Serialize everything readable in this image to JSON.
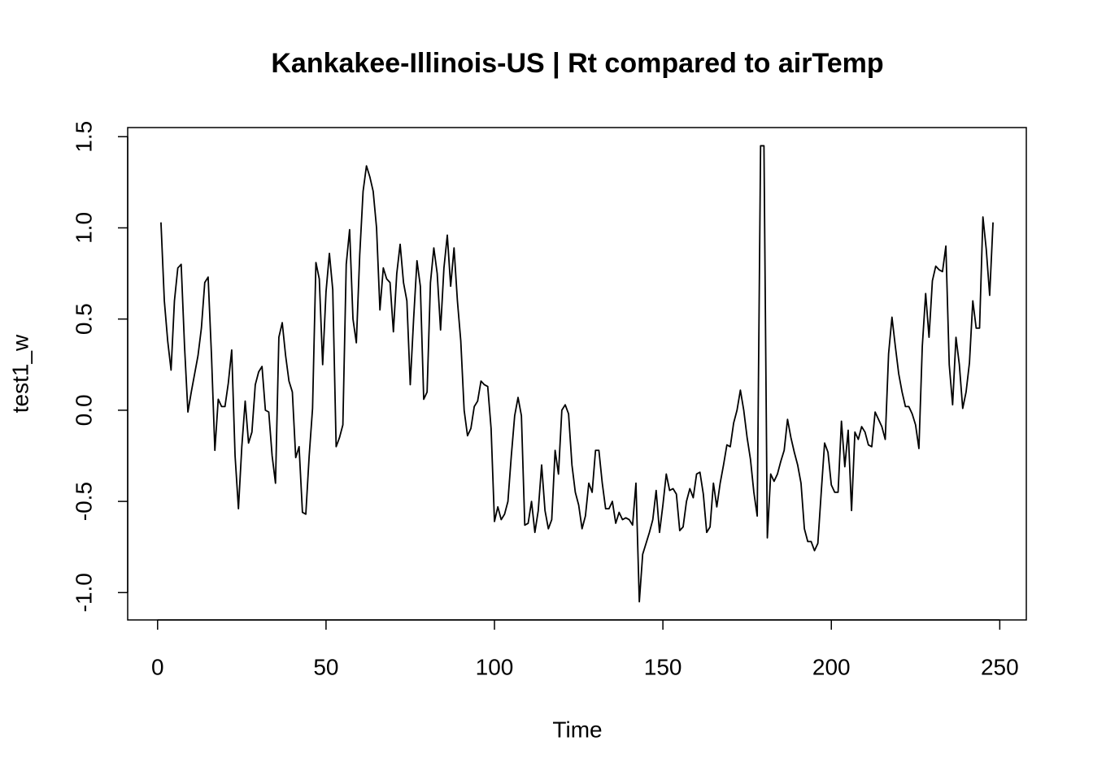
{
  "chart_data": {
    "type": "line",
    "title": "Kankakee-Illinois-US | Rt compared to airTemp",
    "xlabel": "Time",
    "ylabel": "test1_w",
    "color": "#000000",
    "xlim": [
      -8.88,
      257.88
    ],
    "ylim": [
      -1.15,
      1.55
    ],
    "xticks": [
      0,
      50,
      100,
      150,
      200,
      250
    ],
    "yticks": [
      {
        "value": -1,
        "label": "-1.0"
      },
      -0.5,
      {
        "value": 0,
        "label": "0.0"
      },
      0.5,
      {
        "value": 1,
        "label": "1.0"
      },
      1.5
    ],
    "grid": false,
    "x": [
      1,
      2,
      3,
      4,
      5,
      6,
      7,
      8,
      9,
      10,
      11,
      12,
      13,
      14,
      15,
      16,
      17,
      18,
      19,
      20,
      21,
      22,
      23,
      24,
      25,
      26,
      27,
      28,
      29,
      30,
      31,
      32,
      33,
      34,
      35,
      36,
      37,
      38,
      39,
      40,
      41,
      42,
      43,
      44,
      45,
      46,
      47,
      48,
      49,
      50,
      51,
      52,
      53,
      54,
      55,
      56,
      57,
      58,
      59,
      60,
      61,
      62,
      63,
      64,
      65,
      66,
      67,
      68,
      69,
      70,
      71,
      72,
      73,
      74,
      75,
      76,
      77,
      78,
      79,
      80,
      81,
      82,
      83,
      84,
      85,
      86,
      87,
      88,
      89,
      90,
      91,
      92,
      93,
      94,
      95,
      96,
      97,
      98,
      99,
      100,
      101,
      102,
      103,
      104,
      105,
      106,
      107,
      108,
      109,
      110,
      111,
      112,
      113,
      114,
      115,
      116,
      117,
      118,
      119,
      120,
      121,
      122,
      123,
      124,
      125,
      126,
      127,
      128,
      129,
      130,
      131,
      132,
      133,
      134,
      135,
      136,
      137,
      138,
      139,
      140,
      141,
      142,
      143,
      144,
      145,
      146,
      147,
      148,
      149,
      150,
      151,
      152,
      153,
      154,
      155,
      156,
      157,
      158,
      159,
      160,
      161,
      162,
      163,
      164,
      165,
      166,
      167,
      168,
      169,
      170,
      171,
      172,
      173,
      174,
      175,
      176,
      177,
      178,
      179,
      180,
      181,
      182,
      183,
      184,
      185,
      186,
      187,
      188,
      189,
      190,
      191,
      192,
      193,
      194,
      195,
      196,
      197,
      198,
      199,
      200,
      201,
      202,
      203,
      204,
      205,
      206,
      207,
      208,
      209,
      210,
      211,
      212,
      213,
      214,
      215,
      216,
      217,
      218,
      219,
      220,
      221,
      222,
      223,
      224,
      225,
      226,
      227,
      228,
      229,
      230,
      231,
      232,
      233,
      234,
      235,
      236,
      237,
      238,
      239,
      240,
      241,
      242,
      243,
      244,
      245,
      246,
      247,
      248
    ],
    "values": [
      1.03,
      0.6,
      0.38,
      0.22,
      0.6,
      0.78,
      0.8,
      0.35,
      -0.01,
      0.1,
      0.2,
      0.3,
      0.45,
      0.7,
      0.73,
      0.3,
      -0.22,
      0.06,
      0.02,
      0.02,
      0.15,
      0.33,
      -0.25,
      -0.54,
      -0.2,
      0.05,
      -0.18,
      -0.12,
      0.14,
      0.21,
      0.24,
      0.0,
      -0.01,
      -0.25,
      -0.4,
      0.4,
      0.48,
      0.3,
      0.16,
      0.1,
      -0.26,
      -0.2,
      -0.56,
      -0.57,
      -0.25,
      0.01,
      0.81,
      0.72,
      0.25,
      0.65,
      0.86,
      0.66,
      -0.2,
      -0.15,
      -0.08,
      0.8,
      0.99,
      0.5,
      0.37,
      0.85,
      1.2,
      1.34,
      1.28,
      1.2,
      1.0,
      0.55,
      0.78,
      0.72,
      0.7,
      0.43,
      0.75,
      0.91,
      0.7,
      0.6,
      0.14,
      0.5,
      0.82,
      0.68,
      0.06,
      0.1,
      0.7,
      0.89,
      0.75,
      0.44,
      0.78,
      0.96,
      0.68,
      0.89,
      0.6,
      0.38,
      0.0,
      -0.14,
      -0.1,
      0.02,
      0.05,
      0.16,
      0.14,
      0.13,
      -0.1,
      -0.61,
      -0.53,
      -0.6,
      -0.57,
      -0.5,
      -0.25,
      -0.03,
      0.07,
      -0.03,
      -0.63,
      -0.62,
      -0.5,
      -0.67,
      -0.55,
      -0.3,
      -0.55,
      -0.65,
      -0.6,
      -0.22,
      -0.35,
      0.0,
      0.03,
      -0.02,
      -0.3,
      -0.45,
      -0.52,
      -0.65,
      -0.58,
      -0.4,
      -0.45,
      -0.22,
      -0.22,
      -0.4,
      -0.54,
      -0.54,
      -0.5,
      -0.62,
      -0.56,
      -0.6,
      -0.59,
      -0.6,
      -0.63,
      -0.4,
      -1.05,
      -0.79,
      -0.73,
      -0.67,
      -0.6,
      -0.44,
      -0.67,
      -0.52,
      -0.35,
      -0.44,
      -0.43,
      -0.46,
      -0.66,
      -0.64,
      -0.5,
      -0.43,
      -0.48,
      -0.35,
      -0.34,
      -0.46,
      -0.67,
      -0.64,
      -0.4,
      -0.53,
      -0.4,
      -0.3,
      -0.19,
      -0.2,
      -0.07,
      0.0,
      0.11,
      0.0,
      -0.15,
      -0.27,
      -0.45,
      -0.58,
      1.45,
      1.45,
      -0.7,
      -0.35,
      -0.39,
      -0.35,
      -0.28,
      -0.22,
      -0.05,
      -0.15,
      -0.23,
      -0.3,
      -0.4,
      -0.65,
      -0.72,
      -0.72,
      -0.77,
      -0.73,
      -0.45,
      -0.18,
      -0.23,
      -0.41,
      -0.45,
      -0.45,
      -0.06,
      -0.31,
      -0.11,
      -0.55,
      -0.12,
      -0.16,
      -0.09,
      -0.12,
      -0.19,
      -0.2,
      -0.01,
      -0.05,
      -0.09,
      -0.16,
      0.31,
      0.51,
      0.35,
      0.2,
      0.1,
      0.02,
      0.02,
      -0.02,
      -0.08,
      -0.21,
      0.35,
      0.64,
      0.4,
      0.71,
      0.79,
      0.77,
      0.76,
      0.9,
      0.25,
      0.03,
      0.4,
      0.25,
      0.01,
      0.1,
      0.26,
      0.6,
      0.45,
      0.45,
      1.06,
      0.88,
      0.63,
      1.03
    ]
  }
}
